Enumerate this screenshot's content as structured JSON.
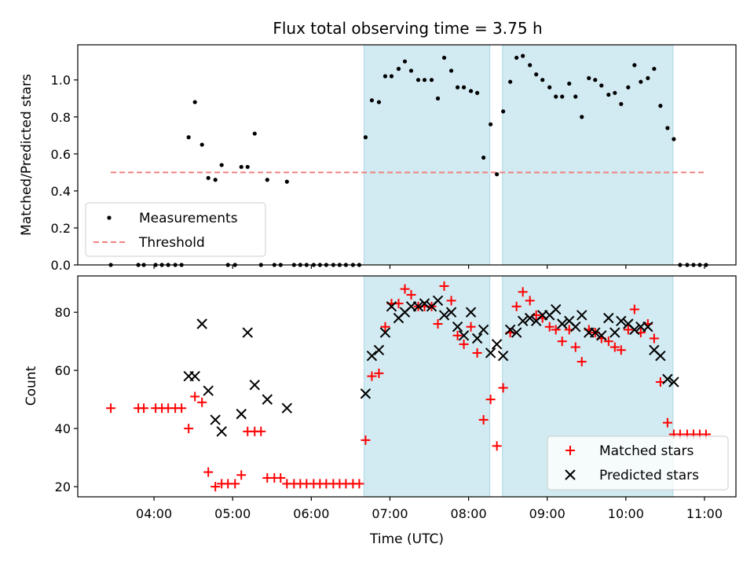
{
  "title": "Flux total observing time = 3.75 h",
  "colors": {
    "shade": "#add8e6",
    "measurement": "#000000",
    "threshold": "#f08080",
    "matched": "#ff0000",
    "predicted": "#000000"
  },
  "chart_data": [
    {
      "type": "scatter",
      "panel": "top",
      "ylabel": "Matched/Predicted stars",
      "xlabel": "",
      "ylim": [
        0,
        1.19
      ],
      "yticks": [
        "0.0",
        "0.2",
        "0.4",
        "0.6",
        "0.8",
        "1.0"
      ],
      "ytick_values": [
        0,
        0.2,
        0.4,
        0.6,
        0.8,
        1.0
      ],
      "legend_position": "lower-left",
      "shaded_regions_hours": [
        [
          6.67,
          8.27
        ],
        [
          8.43,
          10.6
        ]
      ],
      "threshold": {
        "name": "Threshold",
        "value": 0.5,
        "x_range_hours": [
          3.45,
          11.0
        ]
      },
      "series": [
        {
          "name": "Measurements",
          "marker": "dot",
          "points": [
            [
              3.45,
              0
            ],
            [
              3.8,
              0
            ],
            [
              3.87,
              0
            ],
            [
              4.02,
              0
            ],
            [
              4.1,
              0
            ],
            [
              4.18,
              0
            ],
            [
              4.27,
              0
            ],
            [
              4.35,
              0
            ],
            [
              4.44,
              0.69
            ],
            [
              4.52,
              0.88
            ],
            [
              4.61,
              0.65
            ],
            [
              4.69,
              0.47
            ],
            [
              4.78,
              0.46
            ],
            [
              4.86,
              0.54
            ],
            [
              4.94,
              0
            ],
            [
              5.03,
              0
            ],
            [
              5.11,
              0.53
            ],
            [
              5.19,
              0.53
            ],
            [
              5.28,
              0.71
            ],
            [
              5.36,
              0
            ],
            [
              5.44,
              0.46
            ],
            [
              5.53,
              0
            ],
            [
              5.61,
              0
            ],
            [
              5.69,
              0.45
            ],
            [
              5.78,
              0
            ],
            [
              5.86,
              0
            ],
            [
              5.94,
              0
            ],
            [
              6.03,
              0
            ],
            [
              6.11,
              0
            ],
            [
              6.19,
              0
            ],
            [
              6.28,
              0
            ],
            [
              6.36,
              0
            ],
            [
              6.44,
              0
            ],
            [
              6.53,
              0
            ],
            [
              6.61,
              0
            ],
            [
              6.69,
              0.69
            ],
            [
              6.77,
              0.89
            ],
            [
              6.86,
              0.88
            ],
            [
              6.94,
              1.02
            ],
            [
              7.02,
              1.02
            ],
            [
              7.11,
              1.06
            ],
            [
              7.19,
              1.1
            ],
            [
              7.27,
              1.05
            ],
            [
              7.36,
              1.0
            ],
            [
              7.44,
              1.0
            ],
            [
              7.53,
              1.0
            ],
            [
              7.61,
              0.9
            ],
            [
              7.69,
              1.12
            ],
            [
              7.78,
              1.05
            ],
            [
              7.86,
              0.96
            ],
            [
              7.94,
              0.96
            ],
            [
              8.03,
              0.94
            ],
            [
              8.11,
              0.93
            ],
            [
              8.19,
              0.58
            ],
            [
              8.28,
              0.76
            ],
            [
              8.36,
              0.49
            ],
            [
              8.44,
              0.83
            ],
            [
              8.53,
              0.99
            ],
            [
              8.61,
              1.12
            ],
            [
              8.69,
              1.13
            ],
            [
              8.78,
              1.08
            ],
            [
              8.86,
              1.03
            ],
            [
              8.94,
              1.0
            ],
            [
              9.03,
              0.96
            ],
            [
              9.11,
              0.91
            ],
            [
              9.19,
              0.91
            ],
            [
              9.28,
              0.98
            ],
            [
              9.36,
              0.91
            ],
            [
              9.44,
              0.8
            ],
            [
              9.53,
              1.01
            ],
            [
              9.61,
              1.0
            ],
            [
              9.69,
              0.97
            ],
            [
              9.78,
              0.92
            ],
            [
              9.86,
              0.93
            ],
            [
              9.94,
              0.87
            ],
            [
              10.03,
              0.96
            ],
            [
              10.11,
              1.08
            ],
            [
              10.19,
              0.99
            ],
            [
              10.28,
              1.01
            ],
            [
              10.36,
              1.06
            ],
            [
              10.44,
              0.86
            ],
            [
              10.53,
              0.74
            ],
            [
              10.61,
              0.68
            ],
            [
              10.69,
              0
            ],
            [
              10.78,
              0
            ],
            [
              10.86,
              0
            ],
            [
              10.94,
              0
            ],
            [
              11.02,
              0
            ]
          ]
        }
      ]
    },
    {
      "type": "scatter",
      "panel": "bottom",
      "ylabel": "Count",
      "xlabel": "Time (UTC)",
      "ylim": [
        16.5,
        92.5
      ],
      "xlim_hours": [
        3.03,
        11.4
      ],
      "yticks": [
        "20",
        "40",
        "60",
        "80"
      ],
      "ytick_values": [
        20,
        40,
        60,
        80
      ],
      "xticks": [
        "04:00",
        "05:00",
        "06:00",
        "07:00",
        "08:00",
        "09:00",
        "10:00",
        "11:00"
      ],
      "xtick_values_hours": [
        4,
        5,
        6,
        7,
        8,
        9,
        10,
        11
      ],
      "legend_position": "lower-right",
      "shaded_regions_hours": [
        [
          6.67,
          8.27
        ],
        [
          8.43,
          10.6
        ]
      ],
      "series": [
        {
          "name": "Matched stars",
          "marker": "plus",
          "points": [
            [
              3.45,
              47
            ],
            [
              3.8,
              47
            ],
            [
              3.87,
              47
            ],
            [
              4.02,
              47
            ],
            [
              4.1,
              47
            ],
            [
              4.18,
              47
            ],
            [
              4.27,
              47
            ],
            [
              4.35,
              47
            ],
            [
              4.44,
              40
            ],
            [
              4.52,
              51
            ],
            [
              4.61,
              49
            ],
            [
              4.69,
              25
            ],
            [
              4.78,
              20
            ],
            [
              4.86,
              21
            ],
            [
              4.94,
              21
            ],
            [
              5.03,
              21
            ],
            [
              5.11,
              24
            ],
            [
              5.19,
              39
            ],
            [
              5.28,
              39
            ],
            [
              5.36,
              39
            ],
            [
              5.44,
              23
            ],
            [
              5.53,
              23
            ],
            [
              5.61,
              23
            ],
            [
              5.69,
              21
            ],
            [
              5.78,
              21
            ],
            [
              5.86,
              21
            ],
            [
              5.94,
              21
            ],
            [
              6.03,
              21
            ],
            [
              6.11,
              21
            ],
            [
              6.19,
              21
            ],
            [
              6.28,
              21
            ],
            [
              6.36,
              21
            ],
            [
              6.44,
              21
            ],
            [
              6.53,
              21
            ],
            [
              6.61,
              21
            ],
            [
              6.69,
              36
            ],
            [
              6.77,
              58
            ],
            [
              6.86,
              59
            ],
            [
              6.94,
              75
            ],
            [
              7.02,
              83
            ],
            [
              7.11,
              83
            ],
            [
              7.19,
              88
            ],
            [
              7.27,
              86
            ],
            [
              7.36,
              82
            ],
            [
              7.44,
              82
            ],
            [
              7.53,
              82
            ],
            [
              7.61,
              76
            ],
            [
              7.69,
              89
            ],
            [
              7.78,
              84
            ],
            [
              7.86,
              72
            ],
            [
              7.94,
              69
            ],
            [
              8.03,
              75
            ],
            [
              8.11,
              66
            ],
            [
              8.19,
              43
            ],
            [
              8.28,
              50
            ],
            [
              8.36,
              34
            ],
            [
              8.44,
              54
            ],
            [
              8.53,
              73
            ],
            [
              8.61,
              82
            ],
            [
              8.69,
              87
            ],
            [
              8.78,
              84
            ],
            [
              8.86,
              79
            ],
            [
              8.94,
              78
            ],
            [
              9.03,
              75
            ],
            [
              9.11,
              74
            ],
            [
              9.19,
              70
            ],
            [
              9.28,
              74
            ],
            [
              9.36,
              68
            ],
            [
              9.44,
              63
            ],
            [
              9.53,
              74
            ],
            [
              9.61,
              73
            ],
            [
              9.69,
              71
            ],
            [
              9.78,
              70
            ],
            [
              9.86,
              68
            ],
            [
              9.94,
              67
            ],
            [
              10.03,
              74
            ],
            [
              10.11,
              81
            ],
            [
              10.19,
              73
            ],
            [
              10.28,
              76
            ],
            [
              10.36,
              71
            ],
            [
              10.44,
              56
            ],
            [
              10.53,
              42
            ],
            [
              10.61,
              38
            ],
            [
              10.69,
              38
            ],
            [
              10.78,
              38
            ],
            [
              10.86,
              38
            ],
            [
              10.94,
              38
            ],
            [
              11.02,
              38
            ]
          ]
        },
        {
          "name": "Predicted stars",
          "marker": "x",
          "points": [
            [
              4.44,
              58
            ],
            [
              4.52,
              58
            ],
            [
              4.61,
              76
            ],
            [
              4.69,
              53
            ],
            [
              4.78,
              43
            ],
            [
              4.86,
              39
            ],
            [
              5.11,
              45
            ],
            [
              5.19,
              73
            ],
            [
              5.28,
              55
            ],
            [
              5.44,
              50
            ],
            [
              5.69,
              47
            ],
            [
              6.69,
              52
            ],
            [
              6.77,
              65
            ],
            [
              6.86,
              67
            ],
            [
              6.94,
              73
            ],
            [
              7.02,
              82
            ],
            [
              7.11,
              78
            ],
            [
              7.19,
              80
            ],
            [
              7.27,
              82
            ],
            [
              7.36,
              82
            ],
            [
              7.44,
              83
            ],
            [
              7.53,
              82
            ],
            [
              7.61,
              84
            ],
            [
              7.69,
              79
            ],
            [
              7.78,
              80
            ],
            [
              7.86,
              75
            ],
            [
              7.94,
              72
            ],
            [
              8.03,
              80
            ],
            [
              8.11,
              71
            ],
            [
              8.19,
              74
            ],
            [
              8.28,
              66
            ],
            [
              8.36,
              69
            ],
            [
              8.44,
              65
            ],
            [
              8.53,
              74
            ],
            [
              8.61,
              73
            ],
            [
              8.69,
              77
            ],
            [
              8.78,
              78
            ],
            [
              8.86,
              77
            ],
            [
              8.94,
              79
            ],
            [
              9.03,
              79
            ],
            [
              9.11,
              81
            ],
            [
              9.19,
              76
            ],
            [
              9.28,
              77
            ],
            [
              9.36,
              75
            ],
            [
              9.44,
              79
            ],
            [
              9.53,
              73
            ],
            [
              9.61,
              73
            ],
            [
              9.69,
              72
            ],
            [
              9.78,
              78
            ],
            [
              9.86,
              73
            ],
            [
              9.94,
              77
            ],
            [
              10.03,
              76
            ],
            [
              10.11,
              74
            ],
            [
              10.19,
              75
            ],
            [
              10.28,
              75
            ],
            [
              10.36,
              67
            ],
            [
              10.44,
              65
            ],
            [
              10.53,
              57
            ],
            [
              10.61,
              56
            ]
          ]
        }
      ]
    }
  ]
}
